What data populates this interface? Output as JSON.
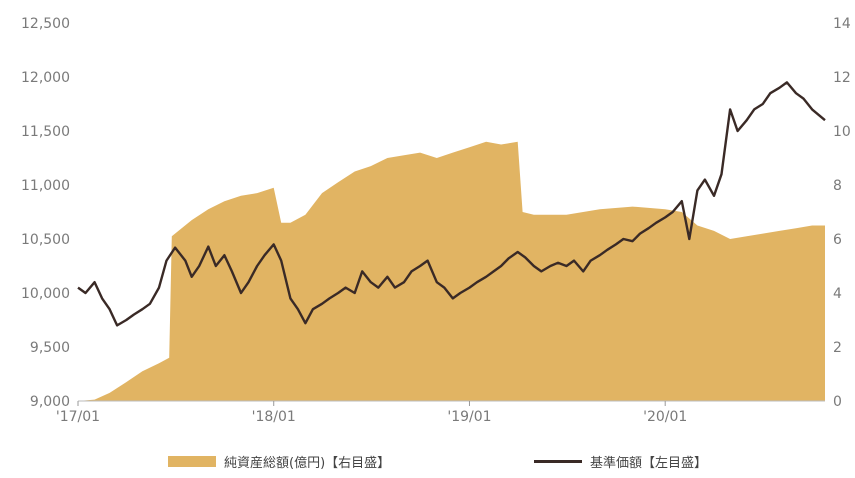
{
  "chart_data": {
    "type": "area+line",
    "x_tick_labels": [
      "'17/01",
      "'18/01",
      "'19/01",
      "'20/01"
    ],
    "left_axis": {
      "ticks": [
        "9,000",
        "9,500",
        "10,000",
        "10,500",
        "11,000",
        "11,500",
        "12,000",
        "12,500"
      ],
      "ylim": [
        9000,
        12500
      ]
    },
    "right_axis": {
      "ticks": [
        "0",
        "2",
        "4",
        "6",
        "8",
        "10",
        "12",
        "14"
      ],
      "ylim": [
        0,
        14
      ]
    },
    "series": [
      {
        "name": "純資産総額(億円)【右目盛】",
        "kind": "area",
        "axis": "right",
        "color": "#e1b463",
        "points": [
          [
            "2017-01-01",
            0.0
          ],
          [
            "2017-02-01",
            0.05
          ],
          [
            "2017-03-01",
            0.3
          ],
          [
            "2017-04-01",
            0.7
          ],
          [
            "2017-05-01",
            1.1
          ],
          [
            "2017-06-01",
            1.4
          ],
          [
            "2017-06-20",
            1.6
          ],
          [
            "2017-06-25",
            6.1
          ],
          [
            "2017-08-01",
            6.7
          ],
          [
            "2017-09-01",
            7.1
          ],
          [
            "2017-10-01",
            7.4
          ],
          [
            "2017-11-01",
            7.6
          ],
          [
            "2017-12-01",
            7.7
          ],
          [
            "2018-01-01",
            7.9
          ],
          [
            "2018-01-15",
            6.6
          ],
          [
            "2018-02-01",
            6.6
          ],
          [
            "2018-03-01",
            6.9
          ],
          [
            "2018-04-01",
            7.7
          ],
          [
            "2018-05-01",
            8.1
          ],
          [
            "2018-06-01",
            8.5
          ],
          [
            "2018-07-01",
            8.7
          ],
          [
            "2018-08-01",
            9.0
          ],
          [
            "2018-09-01",
            9.1
          ],
          [
            "2018-10-01",
            9.2
          ],
          [
            "2018-11-01",
            9.0
          ],
          [
            "2018-12-01",
            9.2
          ],
          [
            "2019-01-01",
            9.4
          ],
          [
            "2019-02-01",
            9.6
          ],
          [
            "2019-03-01",
            9.5
          ],
          [
            "2019-04-01",
            9.6
          ],
          [
            "2019-04-10",
            7.0
          ],
          [
            "2019-05-01",
            6.9
          ],
          [
            "2019-07-01",
            6.9
          ],
          [
            "2019-09-01",
            7.1
          ],
          [
            "2019-11-01",
            7.2
          ],
          [
            "2020-01-01",
            7.1
          ],
          [
            "2020-02-01",
            7.0
          ],
          [
            "2020-03-01",
            6.5
          ],
          [
            "2020-04-01",
            6.3
          ],
          [
            "2020-05-01",
            6.0
          ],
          [
            "2020-06-01",
            6.1
          ],
          [
            "2020-07-01",
            6.2
          ],
          [
            "2020-08-01",
            6.3
          ],
          [
            "2020-09-01",
            6.4
          ],
          [
            "2020-10-01",
            6.5
          ],
          [
            "2020-10-25",
            6.5
          ]
        ]
      },
      {
        "name": "基準価額【左目盛】",
        "kind": "line",
        "axis": "left",
        "color": "#3a2a26",
        "points": [
          [
            "2017-01-01",
            10050
          ],
          [
            "2017-01-15",
            10000
          ],
          [
            "2017-02-01",
            10100
          ],
          [
            "2017-02-15",
            9950
          ],
          [
            "2017-03-01",
            9850
          ],
          [
            "2017-03-15",
            9700
          ],
          [
            "2017-04-01",
            9750
          ],
          [
            "2017-04-15",
            9800
          ],
          [
            "2017-05-01",
            9850
          ],
          [
            "2017-05-15",
            9900
          ],
          [
            "2017-06-01",
            10050
          ],
          [
            "2017-06-15",
            10300
          ],
          [
            "2017-07-01",
            10420
          ],
          [
            "2017-07-20",
            10300
          ],
          [
            "2017-08-01",
            10150
          ],
          [
            "2017-08-15",
            10250
          ],
          [
            "2017-09-01",
            10430
          ],
          [
            "2017-09-15",
            10250
          ],
          [
            "2017-10-01",
            10350
          ],
          [
            "2017-10-15",
            10200
          ],
          [
            "2017-11-01",
            10000
          ],
          [
            "2017-11-15",
            10100
          ],
          [
            "2017-12-01",
            10250
          ],
          [
            "2017-12-15",
            10350
          ],
          [
            "2018-01-01",
            10450
          ],
          [
            "2018-01-15",
            10300
          ],
          [
            "2018-02-01",
            9950
          ],
          [
            "2018-02-15",
            9850
          ],
          [
            "2018-03-01",
            9720
          ],
          [
            "2018-03-15",
            9850
          ],
          [
            "2018-04-01",
            9900
          ],
          [
            "2018-04-15",
            9950
          ],
          [
            "2018-05-01",
            10000
          ],
          [
            "2018-05-15",
            10050
          ],
          [
            "2018-06-01",
            10000
          ],
          [
            "2018-06-15",
            10200
          ],
          [
            "2018-07-01",
            10100
          ],
          [
            "2018-07-15",
            10050
          ],
          [
            "2018-08-01",
            10150
          ],
          [
            "2018-08-15",
            10050
          ],
          [
            "2018-09-01",
            10100
          ],
          [
            "2018-09-15",
            10200
          ],
          [
            "2018-10-01",
            10250
          ],
          [
            "2018-10-15",
            10300
          ],
          [
            "2018-11-01",
            10100
          ],
          [
            "2018-11-15",
            10050
          ],
          [
            "2018-12-01",
            9950
          ],
          [
            "2018-12-15",
            10000
          ],
          [
            "2019-01-01",
            10050
          ],
          [
            "2019-01-15",
            10100
          ],
          [
            "2019-02-01",
            10150
          ],
          [
            "2019-02-15",
            10200
          ],
          [
            "2019-03-01",
            10250
          ],
          [
            "2019-03-15",
            10320
          ],
          [
            "2019-04-01",
            10380
          ],
          [
            "2019-04-15",
            10330
          ],
          [
            "2019-05-01",
            10250
          ],
          [
            "2019-05-15",
            10200
          ],
          [
            "2019-06-01",
            10250
          ],
          [
            "2019-06-15",
            10280
          ],
          [
            "2019-07-01",
            10250
          ],
          [
            "2019-07-15",
            10300
          ],
          [
            "2019-08-01",
            10200
          ],
          [
            "2019-08-15",
            10300
          ],
          [
            "2019-09-01",
            10350
          ],
          [
            "2019-09-15",
            10400
          ],
          [
            "2019-10-01",
            10450
          ],
          [
            "2019-10-15",
            10500
          ],
          [
            "2019-11-01",
            10480
          ],
          [
            "2019-11-15",
            10550
          ],
          [
            "2019-12-01",
            10600
          ],
          [
            "2019-12-15",
            10650
          ],
          [
            "2020-01-01",
            10700
          ],
          [
            "2020-01-15",
            10750
          ],
          [
            "2020-02-01",
            10850
          ],
          [
            "2020-02-15",
            10500
          ],
          [
            "2020-03-01",
            10950
          ],
          [
            "2020-03-15",
            11050
          ],
          [
            "2020-04-01",
            10900
          ],
          [
            "2020-04-15",
            11100
          ],
          [
            "2020-05-01",
            11700
          ],
          [
            "2020-05-15",
            11500
          ],
          [
            "2020-06-01",
            11600
          ],
          [
            "2020-06-15",
            11700
          ],
          [
            "2020-07-01",
            11750
          ],
          [
            "2020-07-15",
            11850
          ],
          [
            "2020-08-01",
            11900
          ],
          [
            "2020-08-15",
            11950
          ],
          [
            "2020-09-01",
            11850
          ],
          [
            "2020-09-15",
            11800
          ],
          [
            "2020-10-01",
            11700
          ],
          [
            "2020-10-25",
            11600
          ]
        ]
      }
    ],
    "legend": [
      {
        "label": "純資産総額(億円)【右目盛】",
        "marker": "area",
        "color": "#e1b463"
      },
      {
        "label": "基準価額【左目盛】",
        "marker": "line",
        "color": "#3a2a26"
      }
    ]
  }
}
